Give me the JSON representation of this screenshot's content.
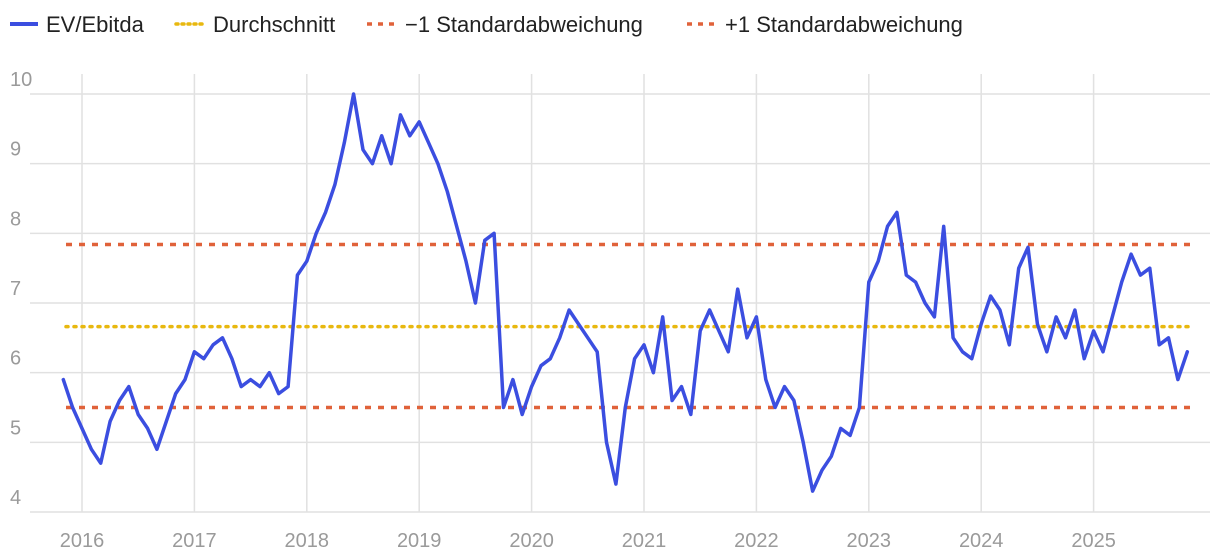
{
  "chart_data": {
    "type": "line",
    "title": "",
    "xlabel": "",
    "ylabel": "",
    "ylim": [
      4,
      10
    ],
    "x_tick_labels": [
      "2016",
      "2017",
      "2018",
      "2019",
      "2020",
      "2021",
      "2022",
      "2023",
      "2024",
      "2025"
    ],
    "y_tick_labels": [
      "4",
      "5",
      "6",
      "7",
      "8",
      "9",
      "10"
    ],
    "grid": true,
    "legend_position": "top-left",
    "series": [
      {
        "name": "EV/Ebitda",
        "color": "#3b4ee0",
        "style": "solid",
        "points": [
          [
            "2015-11",
            5.9
          ],
          [
            "2015-12",
            5.5
          ],
          [
            "2016-01",
            5.2
          ],
          [
            "2016-02",
            4.9
          ],
          [
            "2016-03",
            4.7
          ],
          [
            "2016-04",
            5.3
          ],
          [
            "2016-05",
            5.6
          ],
          [
            "2016-06",
            5.8
          ],
          [
            "2016-07",
            5.4
          ],
          [
            "2016-08",
            5.2
          ],
          [
            "2016-09",
            4.9
          ],
          [
            "2016-10",
            5.3
          ],
          [
            "2016-11",
            5.7
          ],
          [
            "2016-12",
            5.9
          ],
          [
            "2017-01",
            6.3
          ],
          [
            "2017-02",
            6.2
          ],
          [
            "2017-03",
            6.4
          ],
          [
            "2017-04",
            6.5
          ],
          [
            "2017-05",
            6.2
          ],
          [
            "2017-06",
            5.8
          ],
          [
            "2017-07",
            5.9
          ],
          [
            "2017-08",
            5.8
          ],
          [
            "2017-09",
            6.0
          ],
          [
            "2017-10",
            5.7
          ],
          [
            "2017-11",
            5.8
          ],
          [
            "2017-12",
            7.4
          ],
          [
            "2018-01",
            7.6
          ],
          [
            "2018-02",
            8.0
          ],
          [
            "2018-03",
            8.3
          ],
          [
            "2018-04",
            8.7
          ],
          [
            "2018-05",
            9.3
          ],
          [
            "2018-06",
            10.0
          ],
          [
            "2018-07",
            9.2
          ],
          [
            "2018-08",
            9.0
          ],
          [
            "2018-09",
            9.4
          ],
          [
            "2018-10",
            9.0
          ],
          [
            "2018-11",
            9.7
          ],
          [
            "2018-12",
            9.4
          ],
          [
            "2019-01",
            9.6
          ],
          [
            "2019-02",
            9.3
          ],
          [
            "2019-03",
            9.0
          ],
          [
            "2019-04",
            8.6
          ],
          [
            "2019-05",
            8.1
          ],
          [
            "2019-06",
            7.6
          ],
          [
            "2019-07",
            7.0
          ],
          [
            "2019-08",
            7.9
          ],
          [
            "2019-09",
            8.0
          ],
          [
            "2019-10",
            5.5
          ],
          [
            "2019-11",
            5.9
          ],
          [
            "2019-12",
            5.4
          ],
          [
            "2020-01",
            5.8
          ],
          [
            "2020-02",
            6.1
          ],
          [
            "2020-03",
            6.2
          ],
          [
            "2020-04",
            6.5
          ],
          [
            "2020-05",
            6.9
          ],
          [
            "2020-06",
            6.7
          ],
          [
            "2020-07",
            6.5
          ],
          [
            "2020-08",
            6.3
          ],
          [
            "2020-09",
            5.0
          ],
          [
            "2020-10",
            4.4
          ],
          [
            "2020-11",
            5.5
          ],
          [
            "2020-12",
            6.2
          ],
          [
            "2021-01",
            6.4
          ],
          [
            "2021-02",
            6.0
          ],
          [
            "2021-03",
            6.8
          ],
          [
            "2021-04",
            5.6
          ],
          [
            "2021-05",
            5.8
          ],
          [
            "2021-06",
            5.4
          ],
          [
            "2021-07",
            6.6
          ],
          [
            "2021-08",
            6.9
          ],
          [
            "2021-09",
            6.6
          ],
          [
            "2021-10",
            6.3
          ],
          [
            "2021-11",
            7.2
          ],
          [
            "2021-12",
            6.5
          ],
          [
            "2022-01",
            6.8
          ],
          [
            "2022-02",
            5.9
          ],
          [
            "2022-03",
            5.5
          ],
          [
            "2022-04",
            5.8
          ],
          [
            "2022-05",
            5.6
          ],
          [
            "2022-06",
            5.0
          ],
          [
            "2022-07",
            4.3
          ],
          [
            "2022-08",
            4.6
          ],
          [
            "2022-09",
            4.8
          ],
          [
            "2022-10",
            5.2
          ],
          [
            "2022-11",
            5.1
          ],
          [
            "2022-12",
            5.5
          ],
          [
            "2023-01",
            7.3
          ],
          [
            "2023-02",
            7.6
          ],
          [
            "2023-03",
            8.1
          ],
          [
            "2023-04",
            8.3
          ],
          [
            "2023-05",
            7.4
          ],
          [
            "2023-06",
            7.3
          ],
          [
            "2023-07",
            7.0
          ],
          [
            "2023-08",
            6.8
          ],
          [
            "2023-09",
            8.1
          ],
          [
            "2023-10",
            6.5
          ],
          [
            "2023-11",
            6.3
          ],
          [
            "2023-12",
            6.2
          ],
          [
            "2024-01",
            6.7
          ],
          [
            "2024-02",
            7.1
          ],
          [
            "2024-03",
            6.9
          ],
          [
            "2024-04",
            6.4
          ],
          [
            "2024-05",
            7.5
          ],
          [
            "2024-06",
            7.8
          ],
          [
            "2024-07",
            6.7
          ],
          [
            "2024-08",
            6.3
          ],
          [
            "2024-09",
            6.8
          ],
          [
            "2024-10",
            6.5
          ],
          [
            "2024-11",
            6.9
          ],
          [
            "2024-12",
            6.2
          ],
          [
            "2025-01",
            6.6
          ],
          [
            "2025-02",
            6.3
          ],
          [
            "2025-03",
            6.8
          ],
          [
            "2025-04",
            7.3
          ],
          [
            "2025-05",
            7.7
          ],
          [
            "2025-06",
            7.4
          ],
          [
            "2025-07",
            7.5
          ],
          [
            "2025-08",
            6.4
          ],
          [
            "2025-09",
            6.5
          ],
          [
            "2025-10",
            5.9
          ],
          [
            "2025-11",
            6.3
          ]
        ]
      },
      {
        "name": "Durchschnitt",
        "color": "#e8b80f",
        "style": "dotted",
        "value": 6.66
      },
      {
        "name": "−1 Standardabweichung",
        "color": "#e0623a",
        "style": "dashed",
        "value": 5.5
      },
      {
        "name": "+1 Standardabweichung",
        "color": "#e0623a",
        "style": "dashed",
        "value": 7.84
      }
    ]
  }
}
